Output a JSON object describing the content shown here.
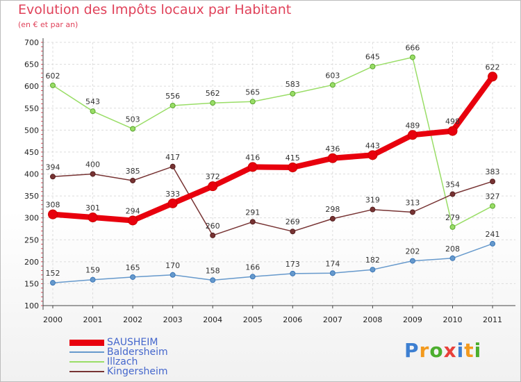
{
  "header": {
    "title": "Evolution des Impôts locaux par Habitant",
    "subtitle": "(en € et par an)"
  },
  "logo": {
    "text": "Proxiti",
    "letters": [
      "P",
      "r",
      "o",
      "x",
      "i",
      "t",
      "i"
    ],
    "colors": [
      "#3d7fd1",
      "#f39a1e",
      "#4cae2e",
      "#e8403a",
      "#3d7fd1",
      "#f39a1e",
      "#4cae2e"
    ]
  },
  "chart_data": {
    "type": "line",
    "title": "Evolution des Impôts locaux par Habitant",
    "subtitle": "(en € et par an)",
    "xlabel": "",
    "ylabel": "",
    "ylim": [
      100,
      700
    ],
    "yticks": [
      100,
      150,
      200,
      250,
      300,
      350,
      400,
      450,
      500,
      550,
      600,
      650,
      700
    ],
    "grid": true,
    "legend_position": "bottom-left",
    "categories": [
      "2000",
      "2001",
      "2002",
      "2003",
      "2004",
      "2005",
      "2006",
      "2007",
      "2008",
      "2009",
      "2010",
      "2011"
    ],
    "series": [
      {
        "name": "SAUSHEIM",
        "color": "#e8000d",
        "values": [
          308,
          301,
          294,
          333,
          372,
          416,
          415,
          436,
          443,
          489,
          498,
          622
        ]
      },
      {
        "name": "Baldersheim",
        "color": "#6699cc",
        "values": [
          152,
          159,
          165,
          170,
          158,
          166,
          173,
          174,
          182,
          202,
          208,
          241
        ]
      },
      {
        "name": "Illzach",
        "color": "#99dd66",
        "values": [
          602,
          543,
          503,
          556,
          562,
          565,
          583,
          603,
          645,
          666,
          279,
          327
        ]
      },
      {
        "name": "Kingersheim",
        "color": "#773333",
        "values": [
          394,
          400,
          385,
          417,
          260,
          291,
          269,
          298,
          319,
          313,
          354,
          383
        ]
      }
    ]
  }
}
